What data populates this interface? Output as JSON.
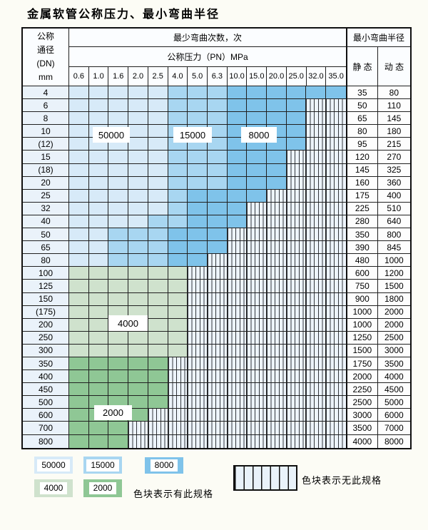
{
  "title": "金属软管公称压力、最小弯曲半径",
  "table": {
    "corner_lines": [
      "公称",
      "通径",
      "(DN)",
      "mm"
    ],
    "cycles_header": "最少弯曲次数，次",
    "pressure_header": "公称压力（PN）MPa",
    "radius_header": "最小弯曲半径",
    "static_header": "静 态",
    "dynamic_header": "动 态",
    "pressures": [
      "0.6",
      "1.0",
      "1.6",
      "2.0",
      "2.5",
      "4.0",
      "5.0",
      "6.3",
      "10.0",
      "15.0",
      "20.0",
      "25.0",
      "32.0",
      "35.0"
    ],
    "rows": [
      {
        "dn": "4",
        "static": "35",
        "dynamic": "80",
        "bands": [
          {
            "cycles": "50000",
            "from": "0.6",
            "to": "2.5"
          },
          {
            "cycles": "15000",
            "from": "4.0",
            "to": "6.3"
          },
          {
            "cycles": "8000",
            "from": "10.0",
            "to": "35.0"
          }
        ]
      },
      {
        "dn": "6",
        "static": "50",
        "dynamic": "110",
        "bands": [
          {
            "cycles": "50000",
            "from": "0.6",
            "to": "2.5"
          },
          {
            "cycles": "15000",
            "from": "4.0",
            "to": "6.3"
          },
          {
            "cycles": "8000",
            "from": "10.0",
            "to": "25.0"
          }
        ]
      },
      {
        "dn": "8",
        "static": "65",
        "dynamic": "145",
        "bands": [
          {
            "cycles": "50000",
            "from": "0.6",
            "to": "2.5"
          },
          {
            "cycles": "15000",
            "from": "4.0",
            "to": "6.3"
          },
          {
            "cycles": "8000",
            "from": "10.0",
            "to": "25.0"
          }
        ]
      },
      {
        "dn": "10",
        "static": "80",
        "dynamic": "180",
        "bands": [
          {
            "cycles": "50000",
            "from": "0.6",
            "to": "2.5"
          },
          {
            "cycles": "15000",
            "from": "4.0",
            "to": "6.3"
          },
          {
            "cycles": "8000",
            "from": "10.0",
            "to": "25.0"
          }
        ]
      },
      {
        "dn": "(12)",
        "static": "95",
        "dynamic": "215",
        "bands": [
          {
            "cycles": "50000",
            "from": "0.6",
            "to": "2.5"
          },
          {
            "cycles": "15000",
            "from": "4.0",
            "to": "6.3"
          },
          {
            "cycles": "8000",
            "from": "10.0",
            "to": "25.0"
          }
        ]
      },
      {
        "dn": "15",
        "static": "120",
        "dynamic": "270",
        "bands": [
          {
            "cycles": "50000",
            "from": "0.6",
            "to": "2.5"
          },
          {
            "cycles": "15000",
            "from": "4.0",
            "to": "6.3"
          },
          {
            "cycles": "8000",
            "from": "10.0",
            "to": "20.0"
          }
        ]
      },
      {
        "dn": "(18)",
        "static": "145",
        "dynamic": "325",
        "bands": [
          {
            "cycles": "50000",
            "from": "0.6",
            "to": "2.5"
          },
          {
            "cycles": "15000",
            "from": "4.0",
            "to": "6.3"
          },
          {
            "cycles": "8000",
            "from": "10.0",
            "to": "20.0"
          }
        ]
      },
      {
        "dn": "20",
        "static": "160",
        "dynamic": "360",
        "bands": [
          {
            "cycles": "50000",
            "from": "0.6",
            "to": "2.5"
          },
          {
            "cycles": "15000",
            "from": "4.0",
            "to": "6.3"
          },
          {
            "cycles": "8000",
            "from": "10.0",
            "to": "20.0"
          }
        ]
      },
      {
        "dn": "25",
        "static": "175",
        "dynamic": "400",
        "bands": [
          {
            "cycles": "50000",
            "from": "0.6",
            "to": "2.5"
          },
          {
            "cycles": "15000",
            "from": "4.0",
            "to": "4.0"
          },
          {
            "cycles": "8000",
            "from": "5.0",
            "to": "15.0"
          }
        ]
      },
      {
        "dn": "32",
        "static": "225",
        "dynamic": "510",
        "bands": [
          {
            "cycles": "50000",
            "from": "0.6",
            "to": "2.5"
          },
          {
            "cycles": "15000",
            "from": "4.0",
            "to": "4.0"
          },
          {
            "cycles": "8000",
            "from": "5.0",
            "to": "10.0"
          }
        ]
      },
      {
        "dn": "40",
        "static": "280",
        "dynamic": "640",
        "bands": [
          {
            "cycles": "50000",
            "from": "0.6",
            "to": "2.0"
          },
          {
            "cycles": "15000",
            "from": "2.5",
            "to": "4.0"
          },
          {
            "cycles": "8000",
            "from": "5.0",
            "to": "10.0"
          }
        ]
      },
      {
        "dn": "50",
        "static": "350",
        "dynamic": "800",
        "bands": [
          {
            "cycles": "50000",
            "from": "0.6",
            "to": "1.0"
          },
          {
            "cycles": "15000",
            "from": "1.6",
            "to": "2.5"
          },
          {
            "cycles": "8000",
            "from": "4.0",
            "to": "6.3"
          }
        ]
      },
      {
        "dn": "65",
        "static": "390",
        "dynamic": "845",
        "bands": [
          {
            "cycles": "50000",
            "from": "0.6",
            "to": "1.0"
          },
          {
            "cycles": "15000",
            "from": "1.6",
            "to": "2.5"
          },
          {
            "cycles": "8000",
            "from": "4.0",
            "to": "6.3"
          }
        ]
      },
      {
        "dn": "80",
        "static": "480",
        "dynamic": "1000",
        "bands": [
          {
            "cycles": "50000",
            "from": "0.6",
            "to": "1.0"
          },
          {
            "cycles": "15000",
            "from": "1.6",
            "to": "2.5"
          },
          {
            "cycles": "8000",
            "from": "4.0",
            "to": "5.0"
          }
        ]
      },
      {
        "dn": "100",
        "static": "600",
        "dynamic": "1200",
        "bands": [
          {
            "cycles": "4000",
            "from": "0.6",
            "to": "4.0"
          }
        ]
      },
      {
        "dn": "125",
        "static": "750",
        "dynamic": "1500",
        "bands": [
          {
            "cycles": "4000",
            "from": "0.6",
            "to": "4.0"
          }
        ]
      },
      {
        "dn": "150",
        "static": "900",
        "dynamic": "1800",
        "bands": [
          {
            "cycles": "4000",
            "from": "0.6",
            "to": "4.0"
          }
        ]
      },
      {
        "dn": "(175)",
        "static": "1000",
        "dynamic": "2000",
        "bands": [
          {
            "cycles": "4000",
            "from": "0.6",
            "to": "4.0"
          }
        ]
      },
      {
        "dn": "200",
        "static": "1000",
        "dynamic": "2000",
        "bands": [
          {
            "cycles": "4000",
            "from": "0.6",
            "to": "4.0"
          }
        ]
      },
      {
        "dn": "250",
        "static": "1250",
        "dynamic": "2500",
        "bands": [
          {
            "cycles": "4000",
            "from": "0.6",
            "to": "4.0"
          }
        ]
      },
      {
        "dn": "300",
        "static": "1500",
        "dynamic": "3000",
        "bands": [
          {
            "cycles": "4000",
            "from": "0.6",
            "to": "4.0"
          }
        ]
      },
      {
        "dn": "350",
        "static": "1750",
        "dynamic": "3500",
        "bands": [
          {
            "cycles": "2000",
            "from": "0.6",
            "to": "2.5"
          }
        ]
      },
      {
        "dn": "400",
        "static": "2000",
        "dynamic": "4000",
        "bands": [
          {
            "cycles": "2000",
            "from": "0.6",
            "to": "2.5"
          }
        ]
      },
      {
        "dn": "450",
        "static": "2250",
        "dynamic": "4500",
        "bands": [
          {
            "cycles": "2000",
            "from": "0.6",
            "to": "2.5"
          }
        ]
      },
      {
        "dn": "500",
        "static": "2500",
        "dynamic": "5000",
        "bands": [
          {
            "cycles": "2000",
            "from": "0.6",
            "to": "2.5"
          }
        ]
      },
      {
        "dn": "600",
        "static": "3000",
        "dynamic": "6000",
        "bands": [
          {
            "cycles": "2000",
            "from": "0.6",
            "to": "2.0"
          }
        ]
      },
      {
        "dn": "700",
        "static": "3500",
        "dynamic": "7000",
        "bands": [
          {
            "cycles": "2000",
            "from": "0.6",
            "to": "1.6"
          }
        ]
      },
      {
        "dn": "800",
        "static": "4000",
        "dynamic": "8000",
        "bands": [
          {
            "cycles": "2000",
            "from": "0.6",
            "to": "1.6"
          }
        ]
      }
    ]
  },
  "overlay_labels": [
    {
      "key": "50000",
      "text": "50000"
    },
    {
      "key": "15000",
      "text": "15000"
    },
    {
      "key": "8000",
      "text": "8000"
    },
    {
      "key": "4000",
      "text": "4000"
    },
    {
      "key": "2000",
      "text": "2000"
    }
  ],
  "legend": {
    "items": [
      "50000",
      "15000",
      "8000",
      "4000",
      "2000"
    ],
    "has_spec_text": "色块表示有此规格",
    "no_spec_text": "色块表示无此规格"
  },
  "colors": {
    "50000": "#d7eaf8",
    "15000": "#a8d6f1",
    "8000": "#7fc3ea",
    "4000": "#cfe2cd",
    "2000": "#8fc795",
    "hatch_bg": "#edf4fb",
    "dn_column_bg": "#eaf2fa",
    "grid_line": "#202020"
  }
}
